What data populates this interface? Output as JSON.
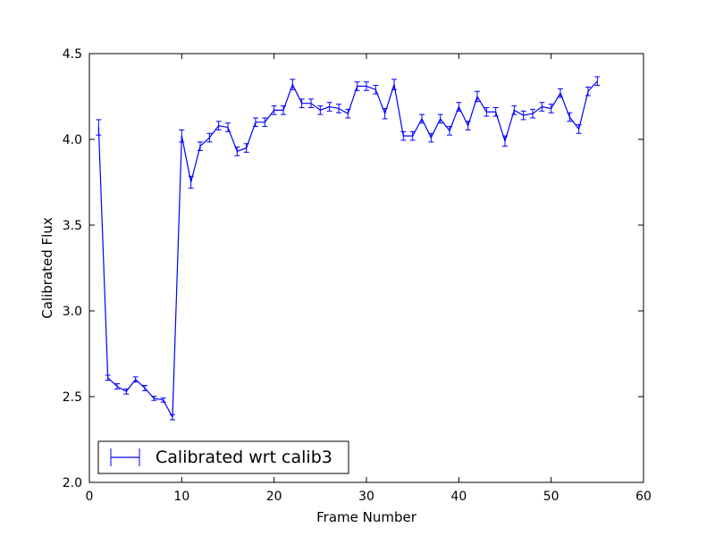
{
  "chart_data": {
    "type": "line",
    "xlabel": "Frame Number",
    "ylabel": "Calibrated Flux",
    "xlim": [
      0,
      60
    ],
    "ylim": [
      2.0,
      4.5
    ],
    "xticks": [
      "0",
      "10",
      "20",
      "30",
      "40",
      "50",
      "60"
    ],
    "yticks": [
      "2.0",
      "2.5",
      "3.0",
      "3.5",
      "4.0",
      "4.5"
    ],
    "grid": false,
    "legend_position": "lower-left",
    "series_color": "#0000ff",
    "series": [
      {
        "name": "Calibrated wrt calib3",
        "x": [
          1,
          2,
          3,
          4,
          5,
          6,
          7,
          8,
          9,
          10,
          11,
          12,
          13,
          14,
          15,
          16,
          17,
          18,
          19,
          20,
          21,
          22,
          23,
          24,
          25,
          26,
          27,
          28,
          29,
          30,
          31,
          32,
          33,
          34,
          35,
          36,
          37,
          38,
          39,
          40,
          41,
          42,
          43,
          44,
          45,
          46,
          47,
          48,
          49,
          50,
          51,
          52,
          53,
          54,
          55
        ],
        "y": [
          4.07,
          2.61,
          2.56,
          2.53,
          2.6,
          2.55,
          2.49,
          2.48,
          2.38,
          4.02,
          3.75,
          3.96,
          4.01,
          4.08,
          4.07,
          3.93,
          3.95,
          4.1,
          4.1,
          4.17,
          4.17,
          4.32,
          4.21,
          4.21,
          4.17,
          4.19,
          4.18,
          4.15,
          4.31,
          4.31,
          4.29,
          4.15,
          4.32,
          4.02,
          4.02,
          4.12,
          4.01,
          4.12,
          4.05,
          4.19,
          4.08,
          4.25,
          4.16,
          4.16,
          3.99,
          4.17,
          4.14,
          4.15,
          4.19,
          4.18,
          4.27,
          4.13,
          4.06,
          4.28,
          4.34
        ],
        "yerr": [
          0.045,
          0.015,
          0.015,
          0.015,
          0.015,
          0.015,
          0.012,
          0.012,
          0.015,
          0.035,
          0.035,
          0.025,
          0.025,
          0.025,
          0.025,
          0.025,
          0.025,
          0.025,
          0.025,
          0.025,
          0.025,
          0.03,
          0.025,
          0.025,
          0.025,
          0.025,
          0.025,
          0.025,
          0.025,
          0.025,
          0.025,
          0.03,
          0.03,
          0.025,
          0.025,
          0.025,
          0.025,
          0.025,
          0.025,
          0.025,
          0.025,
          0.03,
          0.025,
          0.025,
          0.03,
          0.025,
          0.025,
          0.025,
          0.025,
          0.025,
          0.025,
          0.025,
          0.025,
          0.025,
          0.025
        ]
      }
    ]
  }
}
